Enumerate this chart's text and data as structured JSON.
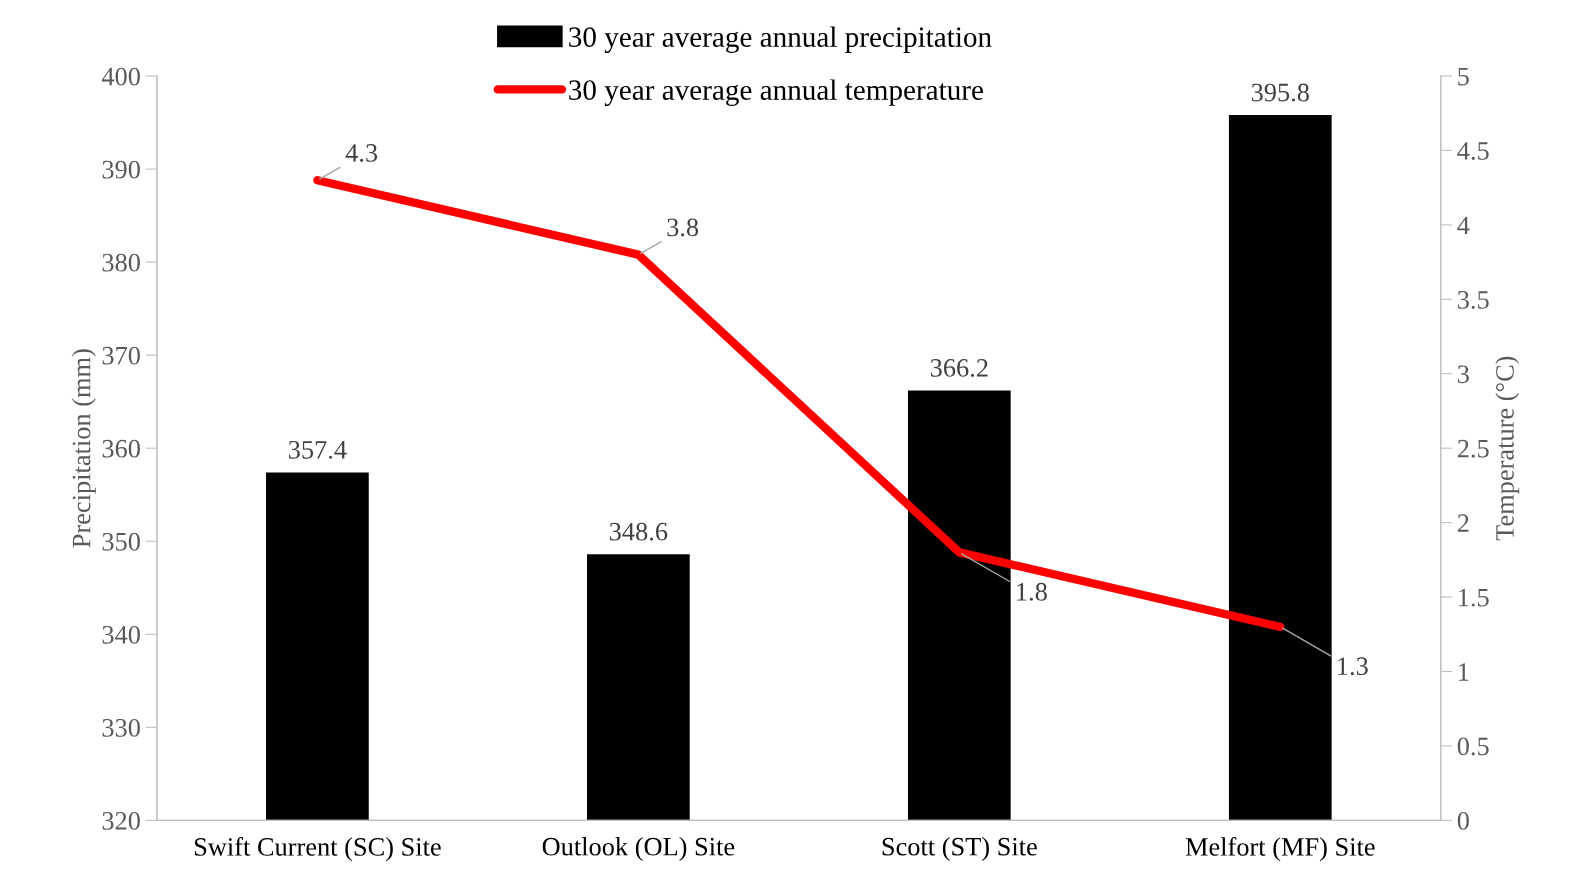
{
  "chart_data": {
    "type": "bar",
    "categories": [
      "Swift Current (SC) Site",
      "Outlook (OL) Site",
      "Scott (ST) Site",
      "Melfort (MF) Site"
    ],
    "series": [
      {
        "name": "30 year average annual precipitation",
        "color": "#000000",
        "values": [
          357.4,
          348.6,
          366.2,
          395.8
        ]
      },
      {
        "name": "30 year average annual temperature",
        "type": "line",
        "axis": "y2",
        "color": "#ff0000",
        "values": [
          4.3,
          3.8,
          1.8,
          1.3
        ]
      }
    ],
    "ylabel": "Precipitation (mm)",
    "y2label": "Temperature (°C)",
    "ylim": [
      320,
      400
    ],
    "yticks": [
      320,
      330,
      340,
      350,
      360,
      370,
      380,
      390,
      400
    ],
    "y2lim": [
      0,
      5
    ],
    "y2ticks": [
      0,
      0.5,
      1,
      1.5,
      2,
      2.5,
      3,
      3.5,
      4,
      4.5,
      5
    ],
    "data_labels": true,
    "legend": "top",
    "grid": false,
    "marker": "none",
    "line_style": "solid"
  }
}
